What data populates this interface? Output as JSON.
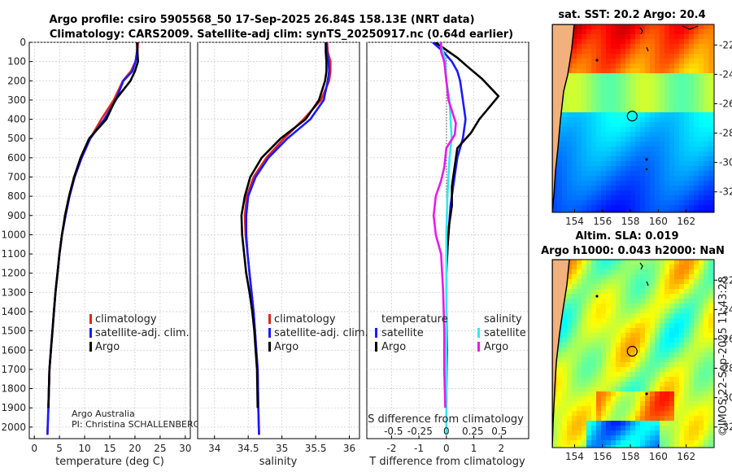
{
  "figure": {
    "title_line1": "Argo profile: csiro 5905568_50 17-Sep-2025 26.84S 158.13E (NRT data)",
    "title_line2": "Climatology: CARS2009. Satellite-adj clim: synTS_20250917.nc (0.64d earlier)",
    "credit_line1": "Argo Australia",
    "credit_line2": "PI: Christina SCHALLENBERG",
    "copyright": "©IMOS 22-Sep-2025 11:43:28",
    "colors": {
      "red": "#e8211b",
      "blue": "#1a1aff",
      "black": "#000000",
      "cyan": "#33e8ee",
      "magenta": "#e81ae8"
    }
  },
  "chart_data": [
    {
      "type": "line",
      "id": "temperature",
      "xlabel": "temperature (deg C)",
      "xlim": [
        -1,
        31
      ],
      "xticks": [
        0,
        5,
        10,
        15,
        20,
        25,
        30
      ],
      "xtick_labels": [
        "0",
        "5",
        "10",
        "15",
        "20",
        "25",
        "30"
      ],
      "ylim": [
        0,
        2060
      ],
      "yticks": [
        0,
        100,
        200,
        300,
        400,
        500,
        600,
        700,
        800,
        900,
        1000,
        1100,
        1200,
        1300,
        1400,
        1500,
        1600,
        1700,
        1800,
        1900,
        2000
      ],
      "ytick_labels": [
        "0",
        "100",
        "200",
        "300",
        "400",
        "500",
        "600",
        "700",
        "800",
        "900",
        "1000",
        "1100",
        "1200",
        "1300",
        "1400",
        "1500",
        "1600",
        "1700",
        "1800",
        "1900",
        "2000"
      ],
      "legend": [
        "climatology",
        "satellite-adj. clim.",
        "Argo"
      ],
      "series": [
        {
          "name": "climatology",
          "color": "red",
          "x": [
            20.6,
            20.5,
            20.1,
            19.2,
            17.6,
            15.8,
            13.3,
            11.1,
            9.4,
            8.0,
            7.0,
            6.2,
            5.5,
            5.0,
            4.6,
            4.2,
            3.9,
            3.6,
            3.3,
            3.0,
            2.8,
            2.6
          ],
          "y": [
            0,
            50,
            100,
            150,
            200,
            300,
            400,
            500,
            600,
            700,
            800,
            900,
            1000,
            1100,
            1200,
            1300,
            1400,
            1500,
            1600,
            1700,
            1900,
            2040
          ]
        },
        {
          "name": "satellite-adj. clim.",
          "color": "blue",
          "x": [
            20.5,
            20.4,
            20.1,
            19.5,
            17.7,
            16.2,
            13.9,
            11.1,
            9.4,
            8.0,
            7.0,
            6.2,
            5.5,
            5.0,
            4.6,
            4.2,
            3.9,
            3.6,
            3.3,
            3.0,
            2.8,
            2.6
          ],
          "y": [
            0,
            50,
            100,
            150,
            200,
            300,
            400,
            500,
            600,
            700,
            800,
            900,
            1000,
            1100,
            1200,
            1300,
            1400,
            1500,
            1600,
            1700,
            1900,
            2040
          ]
        },
        {
          "name": "Argo",
          "color": "black",
          "x": [
            20.4,
            20.5,
            20.6,
            20.0,
            19.1,
            16.1,
            14.3,
            10.9,
            9.2,
            7.9,
            6.9,
            6.1,
            5.5,
            5.0,
            4.6,
            4.2,
            3.9,
            3.6,
            3.3,
            3.0,
            2.8
          ],
          "y": [
            0,
            50,
            100,
            150,
            200,
            300,
            400,
            500,
            600,
            700,
            800,
            900,
            1000,
            1100,
            1200,
            1300,
            1400,
            1500,
            1600,
            1700,
            1900
          ]
        }
      ]
    },
    {
      "type": "line",
      "id": "salinity",
      "xlabel": "salinity",
      "xlim": [
        33.75,
        36.15
      ],
      "xticks": [
        34,
        34.5,
        35,
        35.5,
        36
      ],
      "xtick_labels": [
        "34",
        "34.5",
        "35",
        "35.5",
        "36"
      ],
      "ylim": [
        0,
        2060
      ],
      "legend": [
        "climatology",
        "satellite-adj. clim.",
        "Argo"
      ],
      "series": [
        {
          "name": "climatology",
          "color": "red",
          "x": [
            35.67,
            35.68,
            35.72,
            35.72,
            35.7,
            35.58,
            35.32,
            35.03,
            34.77,
            34.58,
            34.48,
            34.45,
            34.46,
            34.49,
            34.52,
            34.55,
            34.58,
            34.6,
            34.62,
            34.64,
            34.65,
            34.66
          ],
          "y": [
            0,
            50,
            100,
            150,
            200,
            300,
            400,
            500,
            600,
            700,
            800,
            900,
            1000,
            1100,
            1200,
            1300,
            1400,
            1500,
            1600,
            1700,
            1900,
            2040
          ]
        },
        {
          "name": "satellite-adj. clim.",
          "color": "blue",
          "x": [
            35.66,
            35.67,
            35.69,
            35.7,
            35.68,
            35.62,
            35.42,
            35.08,
            34.8,
            34.61,
            34.5,
            34.47,
            34.47,
            34.49,
            34.52,
            34.55,
            34.58,
            34.6,
            34.62,
            34.64,
            34.65,
            34.66
          ],
          "y": [
            0,
            50,
            100,
            150,
            200,
            300,
            400,
            500,
            600,
            700,
            800,
            900,
            1000,
            1100,
            1200,
            1300,
            1400,
            1500,
            1600,
            1700,
            1900,
            2040
          ]
        },
        {
          "name": "Argo",
          "color": "black",
          "x": [
            35.65,
            35.65,
            35.66,
            35.66,
            35.64,
            35.55,
            35.35,
            34.98,
            34.7,
            34.53,
            34.45,
            34.4,
            34.41,
            34.44,
            34.47,
            34.52,
            34.56,
            34.59,
            34.61,
            34.63,
            34.64
          ],
          "y": [
            0,
            50,
            100,
            150,
            200,
            300,
            400,
            500,
            600,
            700,
            800,
            900,
            1000,
            1100,
            1200,
            1300,
            1400,
            1500,
            1600,
            1700,
            1900
          ]
        }
      ]
    },
    {
      "type": "line",
      "id": "difference",
      "xlabel": "T difference from climatology",
      "top_axis_label": "S difference from climatology",
      "xlim": [
        -2.9,
        3.0
      ],
      "xticks": [
        -2,
        -1,
        0,
        1,
        2
      ],
      "xtick_labels": [
        "-2",
        "-1",
        "0",
        "1",
        "2"
      ],
      "sticks": [
        -0.5,
        -0.25,
        0,
        0.25,
        0.5
      ],
      "stick_labels": [
        "-0.5",
        "-0.25",
        "0",
        "0.25",
        "0.5"
      ],
      "ylim": [
        0,
        2060
      ],
      "legend": {
        "temperature_heading": "temperature",
        "salinity_heading": "salinity",
        "temperature_items": [
          "satellite",
          "Argo"
        ],
        "salinity_items": [
          "satellite",
          "Argo"
        ]
      },
      "series": [
        {
          "name": "temperature satellite",
          "color": "blue",
          "x": [
            -0.5,
            -0.1,
            0.2,
            0.4,
            0.5,
            0.6,
            0.7,
            0.6,
            0.4,
            0.3,
            0.25,
            0.15,
            0.1,
            0.05
          ],
          "y": [
            0,
            50,
            100,
            150,
            200,
            300,
            400,
            500,
            600,
            700,
            750,
            850,
            950,
            1050
          ]
        },
        {
          "name": "temperature Argo",
          "color": "black",
          "x": [
            -0.4,
            0.0,
            0.4,
            0.8,
            1.3,
            1.9,
            1.2,
            0.9,
            0.4,
            0.3,
            0.2,
            0.2,
            0.1,
            0.05,
            0.0,
            0.0,
            0.02,
            0.0,
            0.0
          ],
          "y": [
            0,
            40,
            80,
            130,
            190,
            280,
            400,
            470,
            550,
            650,
            750,
            850,
            950,
            1050,
            1200,
            1400,
            1600,
            1800,
            1870
          ]
        },
        {
          "name": "salinity satellite",
          "color": "cyan",
          "x": [
            -0.06,
            -0.03,
            -0.01,
            0.0,
            0.03,
            0.04,
            0.05,
            0.03,
            0.01,
            0.0,
            0.0,
            0.0,
            0.0,
            0.0
          ],
          "y": [
            0,
            50,
            100,
            200,
            300,
            400,
            500,
            600,
            800,
            1000,
            1300,
            1600,
            1900,
            2040
          ]
        },
        {
          "name": "salinity Argo",
          "color": "magenta",
          "x": [
            -0.05,
            -0.05,
            -0.02,
            0.0,
            0.02,
            0.09,
            0.08,
            0.0,
            -0.02,
            -0.05,
            -0.1,
            -0.12,
            -0.1,
            -0.05,
            -0.03,
            -0.02,
            -0.02,
            -0.01
          ],
          "y": [
            0,
            50,
            100,
            200,
            300,
            420,
            480,
            550,
            650,
            720,
            800,
            900,
            1000,
            1100,
            1300,
            1500,
            1700,
            1900
          ]
        }
      ]
    },
    {
      "type": "heatmap",
      "id": "sst-map",
      "title": "sat. SST: 20.2 Argo: 20.4",
      "xticks": [
        154,
        156,
        158,
        160,
        162
      ],
      "xtick_labels": [
        "154",
        "156",
        "158",
        "160",
        "162"
      ],
      "yticks": [
        -22,
        -24,
        -26,
        -28,
        -30,
        -32
      ],
      "ytick_labels": [
        "-22",
        "-24",
        "-26",
        "-28",
        "-30",
        "-32"
      ],
      "xlim": [
        152.4,
        164.0
      ],
      "ylim": [
        -33.4,
        -20.6
      ],
      "profile_location": [
        158.13,
        -26.84
      ]
    },
    {
      "type": "heatmap",
      "id": "sla-map",
      "title_line1": "Altim. SLA: 0.019",
      "title_line2": "Argo h1000: 0.043 h2000: NaN",
      "xticks": [
        154,
        156,
        158,
        160,
        162
      ],
      "xtick_labels": [
        "154",
        "156",
        "158",
        "160",
        "162"
      ],
      "yticks": [
        -22,
        -24,
        -26,
        -28,
        -30,
        -32
      ],
      "ytick_labels": [
        "-22",
        "-24",
        "-26",
        "-28",
        "-30",
        "-32"
      ],
      "xlim": [
        152.4,
        164.0
      ],
      "ylim": [
        -33.4,
        -20.6
      ],
      "profile_location": [
        158.13,
        -26.84
      ]
    }
  ]
}
